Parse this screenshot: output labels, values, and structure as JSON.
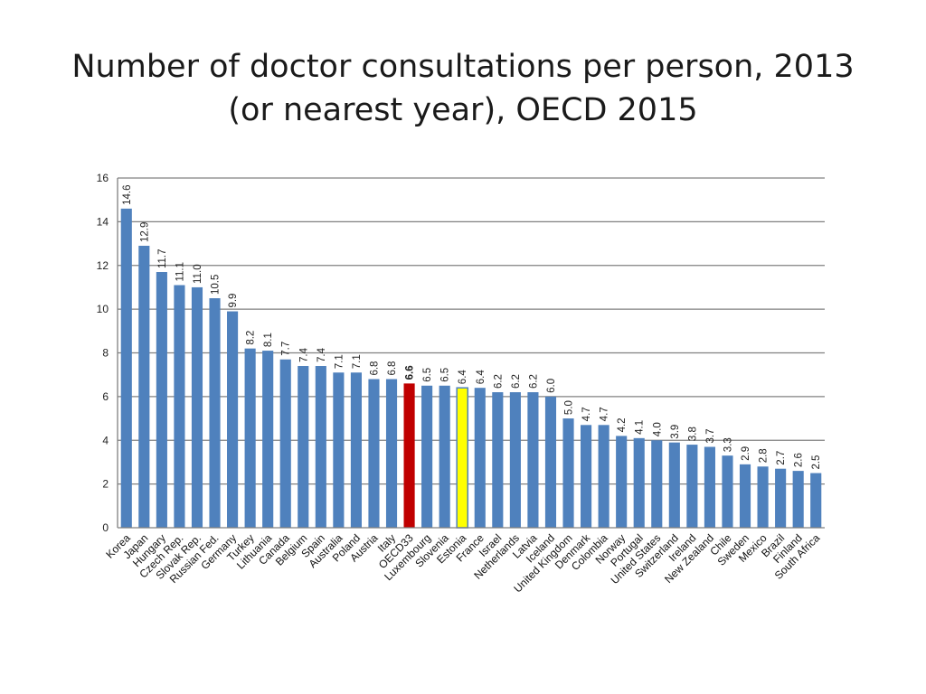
{
  "chart_data": {
    "type": "bar",
    "title": "Number of doctor consultations per person, 2013 (or nearest year), OECD 2015",
    "xlabel": "",
    "ylabel": "",
    "ylim": [
      0,
      16
    ],
    "yticks": [
      0,
      2,
      4,
      6,
      8,
      10,
      12,
      14,
      16
    ],
    "grid": true,
    "categories": [
      "Korea",
      "Japan",
      "Hungary",
      "Czech Rep.",
      "Slovak Rep.",
      "Russian Fed.",
      "Germany",
      "Turkey",
      "Lithuania",
      "Canada",
      "Belgium",
      "Spain",
      "Australia",
      "Poland",
      "Austria",
      "Italy",
      "OECD33",
      "Luxembourg",
      "Slovenia",
      "Estonia",
      "France",
      "Israel",
      "Netherlands",
      "Latvia",
      "Iceland",
      "United Kingdom",
      "Denmark",
      "Colombia",
      "Norway",
      "Portugal",
      "United States",
      "Switzerland",
      "Ireland",
      "New Zealand",
      "Chile",
      "Sweden",
      "Mexico",
      "Brazil",
      "Finland",
      "South Africa"
    ],
    "values": [
      14.6,
      12.9,
      11.7,
      11.1,
      11.0,
      10.5,
      9.9,
      8.2,
      8.1,
      7.7,
      7.4,
      7.4,
      7.1,
      7.1,
      6.8,
      6.8,
      6.6,
      6.5,
      6.5,
      6.4,
      6.4,
      6.2,
      6.2,
      6.2,
      6.0,
      5.0,
      4.7,
      4.7,
      4.2,
      4.1,
      4.0,
      3.9,
      3.8,
      3.7,
      3.3,
      2.9,
      2.8,
      2.7,
      2.6,
      2.5
    ],
    "value_labels": [
      "14.6",
      "12.9",
      "11.7",
      "11.1",
      "11.0",
      "10.5",
      "9.9",
      "8.2",
      "8.1",
      "7.7",
      "7.4",
      "7.4",
      "7.1",
      "7.1",
      "6.8",
      "6.8",
      "6.6",
      "6.5",
      "6.5",
      "6.4",
      "6.4",
      "6.2",
      "6.2",
      "6.2",
      "6.0",
      "5.0",
      "4.7",
      "4.7",
      "4.2",
      "4.1",
      "4.0",
      "3.9",
      "3.8",
      "3.7",
      "3.3",
      "2.9",
      "2.8",
      "2.7",
      "2.6",
      "2.5"
    ],
    "highlights": {
      "OECD33": "#c00000",
      "Estonia": "#ffff00"
    },
    "bar_color": "#4f81bd",
    "grid_color": "#808080"
  }
}
